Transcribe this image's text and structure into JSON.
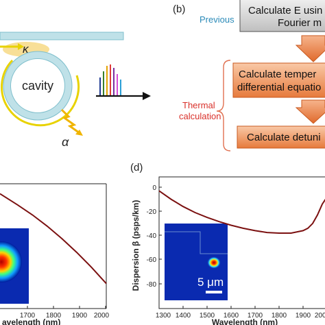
{
  "panel_b": {
    "label": "(b)",
    "previous_label": "Previous",
    "thermal_label_line1": "Thermal",
    "thermal_label_line2": "calculation",
    "box1_line1": "Calculate E usin",
    "box1_line2": "Fourier m",
    "box2_line1": "Calculate temper",
    "box2_line2": "differential equatio",
    "box3_line1": "Calculate detuni"
  },
  "panel_a": {
    "kappa": "κ",
    "cavity": "cavity",
    "alpha": "α"
  },
  "panel_c": {
    "x_tick_labels": [
      "1700",
      "1800",
      "1900",
      "2000"
    ],
    "xlabel": "avelength (nm)"
  },
  "panel_d": {
    "label": "(d)",
    "ylabel": "Dispersion β  (psps/km)",
    "y_tick_labels": [
      "0",
      "-20",
      "-40",
      "-60",
      "-80"
    ],
    "x_tick_labels": [
      "1300",
      "1400",
      "1500",
      "1600",
      "1700",
      "1800",
      "1900",
      "2000"
    ],
    "xlabel": "Wavelength (nm)",
    "scalebar_label": "5 μm"
  },
  "chart_data": [
    {
      "type": "line",
      "panel": "c",
      "xlabel": "avelength (nm)",
      "ylabel": "",
      "x": [
        1640,
        1700,
        1750,
        1800,
        1850,
        1900,
        1950,
        2000
      ],
      "series": [
        {
          "values": [
            0.92,
            0.83,
            0.75,
            0.66,
            0.56,
            0.45,
            0.33,
            0.2
          ]
        }
      ],
      "line_color": "#7b1010"
    },
    {
      "type": "line",
      "panel": "d",
      "xlabel": "Wavelength (nm)",
      "ylabel": "Dispersion β  (psps/km)",
      "xlim": [
        1300,
        2000
      ],
      "ylim": [
        -100,
        8
      ],
      "x": [
        1300,
        1350,
        1400,
        1450,
        1500,
        1550,
        1600,
        1650,
        1700,
        1750,
        1800,
        1850,
        1900,
        1920,
        1940,
        1960,
        1980,
        2000
      ],
      "series": [
        {
          "values": [
            -3,
            -10,
            -16,
            -21,
            -25,
            -28.5,
            -31.5,
            -34,
            -36,
            -37.5,
            -38,
            -38,
            -36,
            -34,
            -30,
            -23,
            -14,
            -8
          ]
        }
      ],
      "line_color": "#7b1010"
    }
  ]
}
